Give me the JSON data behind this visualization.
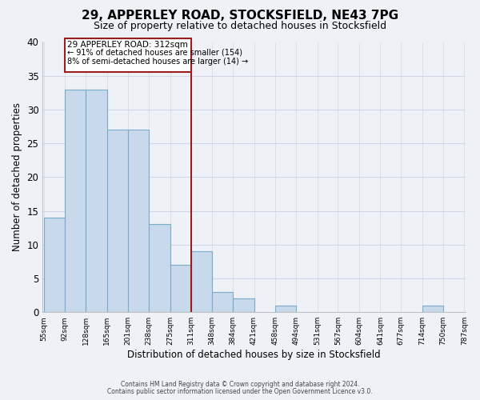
{
  "title": "29, APPERLEY ROAD, STOCKSFIELD, NE43 7PG",
  "subtitle": "Size of property relative to detached houses in Stocksfield",
  "xlabel": "Distribution of detached houses by size in Stocksfield",
  "ylabel": "Number of detached properties",
  "bar_edges": [
    55,
    92,
    128,
    165,
    201,
    238,
    275,
    311,
    348,
    384,
    421,
    458,
    494,
    531,
    567,
    604,
    641,
    677,
    714,
    750,
    787
  ],
  "bar_heights": [
    14,
    33,
    33,
    27,
    27,
    13,
    7,
    9,
    3,
    2,
    0,
    1,
    0,
    0,
    0,
    0,
    0,
    0,
    1,
    0
  ],
  "bar_color": "#c8d9eb",
  "bar_edge_color": "#7aaac8",
  "ylim": [
    0,
    40
  ],
  "yticks": [
    0,
    5,
    10,
    15,
    20,
    25,
    30,
    35,
    40
  ],
  "property_line_x": 311,
  "property_line_color": "#9b1c1c",
  "annotation_title": "29 APPERLEY ROAD: 312sqm",
  "annotation_line1": "← 91% of detached houses are smaller (154)",
  "annotation_line2": "8% of semi-detached houses are larger (14) →",
  "annotation_box_edgecolor": "#9b1c1c",
  "footnote1": "Contains HM Land Registry data © Crown copyright and database right 2024.",
  "footnote2": "Contains public sector information licensed under the Open Government Licence v3.0.",
  "background_color": "#eef2f7",
  "grid_color": "#d0d8e8"
}
